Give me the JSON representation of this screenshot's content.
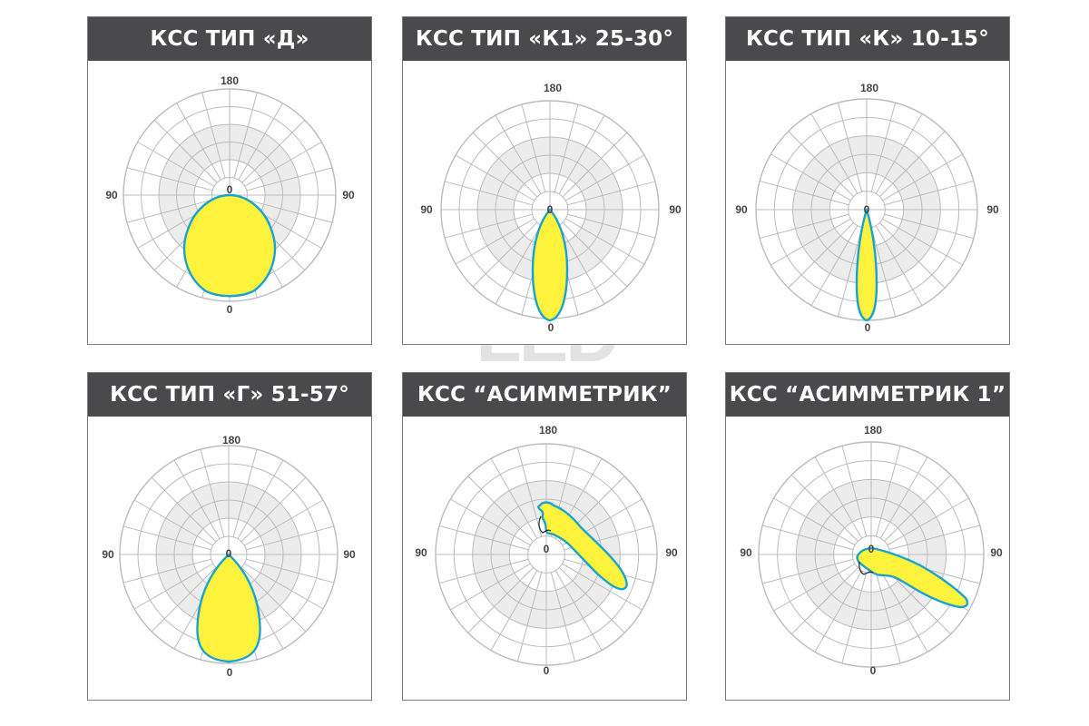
{
  "watermark": "LED",
  "colors": {
    "header_bg": "#4a4a4c",
    "header_text": "#ffffff",
    "ring_fill": "#ececec",
    "grid_line": "#bbbbbb",
    "curve_fill": "#fff23c",
    "curve_stroke": "#1aa3cf"
  },
  "panels": [
    {
      "title": "КСС ТИП «Д»",
      "labels": {
        "top": "180",
        "left": "90",
        "right": "90",
        "bottom": "0",
        "center": "0"
      },
      "curve": "type_d"
    },
    {
      "title": "КСС ТИП «К1» 25-30°",
      "labels": {
        "top": "180",
        "left": "90",
        "right": "90",
        "bottom": "0",
        "center": "0"
      },
      "curve": "type_k1"
    },
    {
      "title": "КСС ТИП «К» 10-15°",
      "labels": {
        "top": "180",
        "left": "90",
        "right": "90",
        "bottom": "0",
        "center": "0"
      },
      "curve": "type_k"
    },
    {
      "title": "КСС ТИП «Г» 51-57°",
      "labels": {
        "top": "180",
        "left": "90",
        "right": "90",
        "bottom": "0",
        "center": "0"
      },
      "curve": "type_g"
    },
    {
      "title": "КСС  “АСИММЕТРИК”",
      "labels": {
        "top": "180",
        "left": "90",
        "right": "90",
        "bottom": "0",
        "center": "0"
      },
      "curve": "asym"
    },
    {
      "title": "КСС  “АСИММЕТРИК 1”",
      "labels": {
        "top": "180",
        "left": "90",
        "right": "90",
        "bottom": "0",
        "center": "0"
      },
      "curve": "asym1"
    }
  ]
}
